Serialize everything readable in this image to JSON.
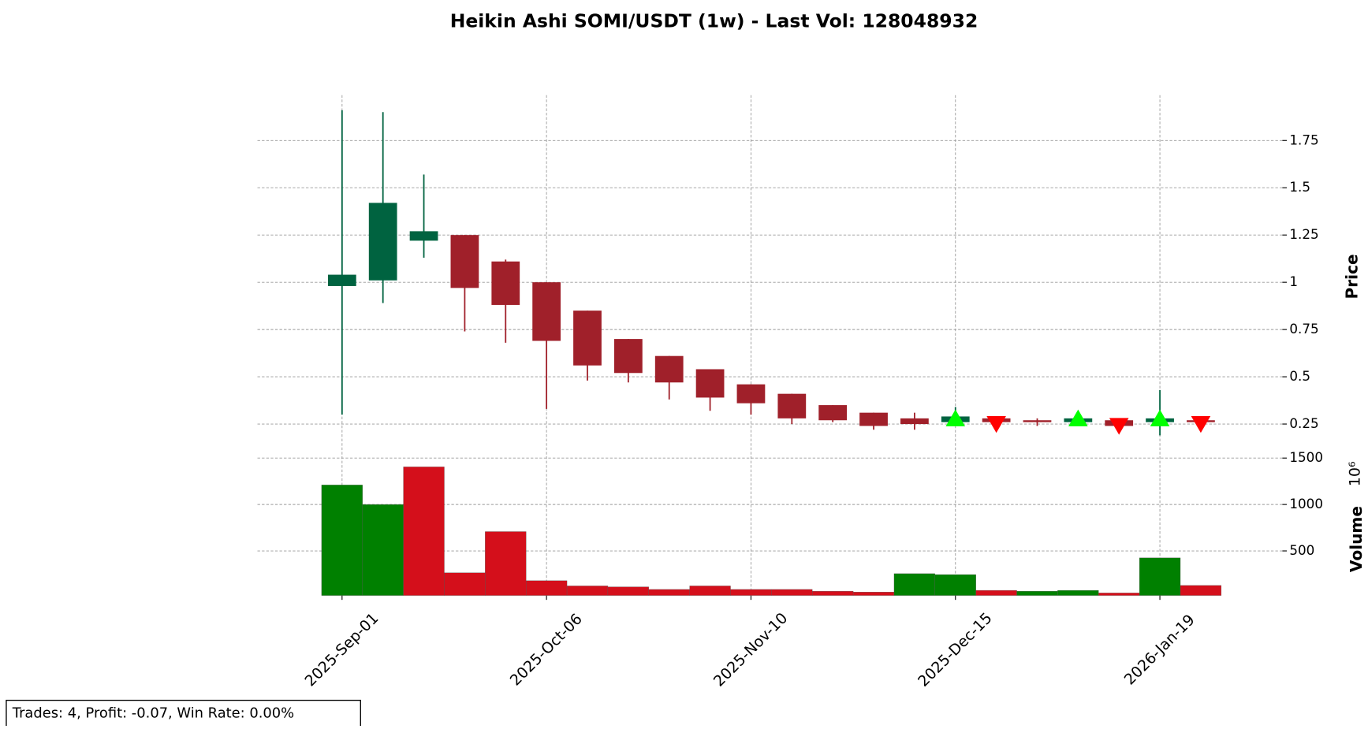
{
  "chart_data": {
    "type": "candlestick",
    "title": "Heikin Ashi SOMI/USDT (1w) - Last Vol: 128048932",
    "categories": [
      "2025-Sep-01",
      null,
      null,
      null,
      null,
      "2025-Oct-06",
      null,
      null,
      null,
      null,
      "2025-Nov-10",
      null,
      null,
      null,
      null,
      "2025-Dec-15",
      null,
      null,
      null,
      null,
      "2026-Jan-19",
      null
    ],
    "open": [
      0.98,
      1.01,
      1.22,
      1.25,
      1.11,
      1.0,
      0.85,
      0.7,
      0.61,
      0.54,
      0.46,
      0.41,
      0.35,
      0.31,
      0.28,
      0.26,
      0.28,
      0.27,
      0.26,
      0.27,
      0.26,
      0.27
    ],
    "high": [
      1.91,
      1.9,
      1.57,
      1.25,
      1.12,
      1.0,
      0.85,
      0.7,
      0.61,
      0.54,
      0.46,
      0.41,
      0.35,
      0.31,
      0.31,
      0.34,
      0.29,
      0.28,
      0.29,
      0.28,
      0.43,
      0.27
    ],
    "low": [
      0.3,
      0.89,
      1.13,
      0.74,
      0.68,
      0.33,
      0.48,
      0.47,
      0.38,
      0.32,
      0.3,
      0.25,
      0.26,
      0.22,
      0.22,
      0.25,
      0.24,
      0.24,
      0.25,
      0.23,
      0.19,
      0.25
    ],
    "close": [
      1.04,
      1.42,
      1.27,
      0.97,
      0.88,
      0.69,
      0.56,
      0.52,
      0.47,
      0.39,
      0.36,
      0.28,
      0.27,
      0.24,
      0.25,
      0.29,
      0.26,
      0.26,
      0.28,
      0.24,
      0.28,
      0.26
    ],
    "up_color": "#006340",
    "down_color": "#a0202a",
    "buy": [
      null,
      null,
      null,
      null,
      null,
      null,
      null,
      null,
      null,
      null,
      null,
      null,
      null,
      null,
      null,
      0.28,
      null,
      null,
      0.28,
      null,
      0.28,
      null
    ],
    "sell": [
      null,
      null,
      null,
      null,
      null,
      null,
      null,
      null,
      null,
      null,
      null,
      null,
      null,
      null,
      null,
      null,
      0.25,
      null,
      null,
      0.24,
      null,
      0.25
    ],
    "buy_color": "#00ff00",
    "sell_color": "#ff0000",
    "ylim": [
      0.07,
      1.99
    ],
    "yticks": [
      0.25,
      0.5,
      0.75,
      1.0,
      1.25,
      1.5,
      1.75
    ],
    "ylabel": "Price",
    "grid": true,
    "volume": {
      "values": [
        1210,
        1000,
        1405,
        264,
        708,
        179,
        123,
        113,
        85,
        123,
        85,
        85,
        66,
        57,
        255,
        245,
        75,
        66,
        75,
        47,
        425,
        128
      ],
      "colors": [
        "#008000",
        "#008000",
        "#d40f1b",
        "#d40f1b",
        "#d40f1b",
        "#d40f1b",
        "#d40f1b",
        "#d40f1b",
        "#d40f1b",
        "#d40f1b",
        "#d40f1b",
        "#d40f1b",
        "#d40f1b",
        "#d40f1b",
        "#008000",
        "#008000",
        "#d40f1b",
        "#008000",
        "#008000",
        "#d40f1b",
        "#008000",
        "#d40f1b"
      ],
      "ylim": [
        20,
        1500
      ],
      "yticks": [
        500,
        1000,
        1500
      ],
      "ylabel": "Volume",
      "scale_label": "10⁶"
    },
    "annotation": "Trades: 4, Profit: -0.07, Win Rate: 0.00%"
  }
}
